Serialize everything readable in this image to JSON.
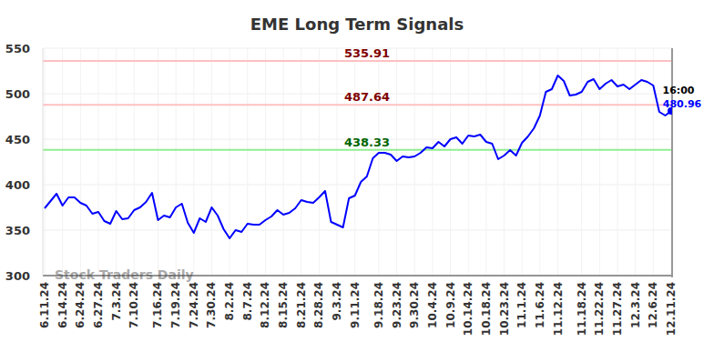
{
  "chart_data": {
    "type": "line",
    "title": "EME Long Term Signals",
    "watermark": "Stock Traders Daily",
    "categories": [
      "6.11.24",
      null,
      null,
      "6.14.24",
      null,
      null,
      "6.24.24",
      null,
      null,
      "6.27.24",
      null,
      null,
      "7.3.24",
      null,
      null,
      "7.10.24",
      null,
      null,
      null,
      "7.16.24",
      null,
      null,
      "7.19.24",
      null,
      null,
      "7.24.24",
      null,
      null,
      "7.30.24",
      null,
      null,
      "8.2.24",
      null,
      null,
      "8.7.24",
      null,
      null,
      "8.12.24",
      null,
      null,
      "8.15.24",
      null,
      null,
      "8.21.24",
      null,
      null,
      "8.28.24",
      null,
      null,
      "9.3.24",
      null,
      null,
      "9.11.24",
      null,
      null,
      null,
      "9.18.24",
      null,
      null,
      "9.23.24",
      null,
      null,
      "9.30.24",
      null,
      null,
      "10.4.24",
      null,
      null,
      "10.9.24",
      null,
      null,
      "10.14.24",
      null,
      null,
      "10.18.24",
      null,
      null,
      "10.23.24",
      null,
      null,
      "11.1.24",
      null,
      null,
      "11.6.24",
      null,
      null,
      "11.12.24",
      null,
      null,
      null,
      "11.18.24",
      null,
      null,
      "11.22.24",
      null,
      null,
      "11.27.24",
      null,
      null,
      "12.3.24",
      null,
      null,
      "12.6.24",
      null,
      null,
      "12.11.24"
    ],
    "series": [
      {
        "name": "EME",
        "color": "#0000ff",
        "values": [
          374,
          382,
          390,
          377,
          386,
          386,
          380,
          377,
          368,
          370,
          360,
          357,
          371,
          362,
          363,
          372,
          375,
          381,
          391,
          361,
          366,
          364,
          375,
          379,
          358,
          347,
          363,
          359,
          375,
          366,
          351,
          341,
          350,
          348,
          357,
          356,
          356,
          361,
          365,
          372,
          367,
          369,
          374,
          383,
          381,
          380,
          386,
          393,
          359,
          356,
          353,
          385,
          388,
          403,
          409,
          429,
          435,
          435,
          433,
          426,
          431,
          430,
          431,
          435,
          441,
          440,
          447,
          442,
          450,
          452,
          445,
          454,
          453,
          455,
          447,
          445,
          428,
          432,
          438,
          432,
          446,
          453,
          462,
          476,
          502,
          505,
          520,
          514,
          498,
          499,
          502,
          513,
          516,
          505,
          511,
          515,
          508,
          510,
          505,
          510,
          515,
          513,
          509,
          480,
          476,
          480.96
        ]
      }
    ],
    "last_time": "16:00",
    "reference_lines": [
      {
        "value": 535.91,
        "color": "#ffc0c0",
        "label_color": "#800000"
      },
      {
        "value": 487.64,
        "color": "#ffc0c0",
        "label_color": "#800000"
      },
      {
        "value": 438.33,
        "color": "#90ee90",
        "label_color": "#006400"
      }
    ],
    "ylim": [
      300,
      550
    ],
    "yticks": [
      300,
      350,
      400,
      450,
      500,
      550
    ],
    "grid": true
  }
}
